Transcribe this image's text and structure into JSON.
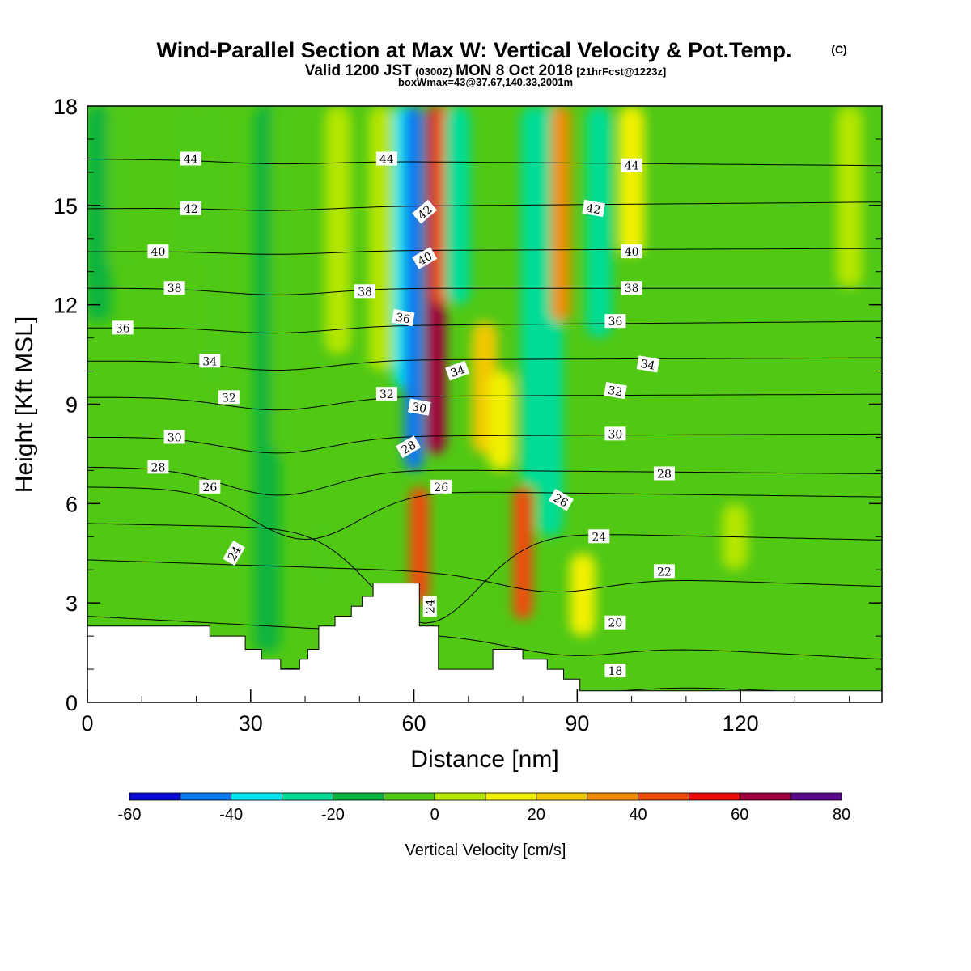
{
  "title": {
    "main": "Wind-Parallel Section at Max W: Vertical Velocity & Pot.Temp.",
    "copyright": "(C)",
    "valid_prefix": "Valid 1200 JST",
    "valid_utc": "(0300Z)",
    "valid_date": "MON 8 Oct 2018",
    "forecast": "[21hrFcst@1223z]",
    "boxwmax": "boxWmax=43@37.67,140.33,2001m"
  },
  "chart_data": {
    "type": "heatmap",
    "xlabel": "Distance [nm]",
    "ylabel": "Height [Kft MSL]",
    "xlim": [
      0,
      146
    ],
    "ylim": [
      0,
      18
    ],
    "x_ticks": [
      0,
      30,
      60,
      90,
      120
    ],
    "y_ticks": [
      0,
      3,
      6,
      9,
      12,
      15,
      18
    ],
    "colorbar": {
      "label": "Vertical Velocity [cm/s]",
      "levels": [
        -60,
        -50,
        -40,
        -30,
        -20,
        -10,
        0,
        10,
        20,
        30,
        40,
        50,
        60,
        70,
        80
      ],
      "tick_labels": [
        "-60",
        "-40",
        "-20",
        "0",
        "20",
        "40",
        "60",
        "80"
      ],
      "colors": [
        "#0a0ad6",
        "#0a78f0",
        "#00e6f0",
        "#00dc96",
        "#0ab43c",
        "#50c814",
        "#b4e600",
        "#f0f000",
        "#f0c800",
        "#f08c00",
        "#f04b0a",
        "#f00a0a",
        "#a0003c",
        "#5a0a8c"
      ]
    },
    "w_features": [
      {
        "x": 2,
        "y1": 11.5,
        "y2": 18,
        "w": -12
      },
      {
        "x": 6,
        "y1": 13.0,
        "y2": 18,
        "w": -8
      },
      {
        "x": 18,
        "y1": 13.5,
        "y2": 18,
        "w": -6
      },
      {
        "x": 23,
        "y1": 9.5,
        "y2": 18,
        "w": -4
      },
      {
        "x": 33,
        "y1": 1.5,
        "y2": 18,
        "w": -15
      },
      {
        "x": 36,
        "y1": 7.5,
        "y2": 18,
        "w": -6
      },
      {
        "x": 43,
        "y1": 3.5,
        "y2": 5.5,
        "w": -8
      },
      {
        "x": 46,
        "y1": 10.5,
        "y2": 18,
        "w": 6
      },
      {
        "x": 54,
        "y1": 10.0,
        "y2": 18,
        "w": 8
      },
      {
        "x": 58,
        "y1": 9.5,
        "y2": 18,
        "w": -32
      },
      {
        "x": 60,
        "y1": 7.0,
        "y2": 18,
        "w": -42
      },
      {
        "x": 61,
        "y1": 3.0,
        "y2": 6.5,
        "w": 45
      },
      {
        "x": 64,
        "y1": 7.5,
        "y2": 18,
        "w": 65
      },
      {
        "x": 65,
        "y1": 12.0,
        "y2": 18,
        "w": 42
      },
      {
        "x": 68,
        "y1": 12.0,
        "y2": 18,
        "w": -30
      },
      {
        "x": 73,
        "y1": 7.5,
        "y2": 11.5,
        "w": 24
      },
      {
        "x": 76,
        "y1": 7.0,
        "y2": 10.0,
        "w": 18
      },
      {
        "x": 80,
        "y1": 2.5,
        "y2": 6.5,
        "w": 45
      },
      {
        "x": 82,
        "y1": 6.5,
        "y2": 18,
        "w": -28
      },
      {
        "x": 85,
        "y1": 5.0,
        "y2": 18,
        "w": -22
      },
      {
        "x": 87,
        "y1": 11.5,
        "y2": 18,
        "w": 38
      },
      {
        "x": 91,
        "y1": 2.0,
        "y2": 4.5,
        "w": 16
      },
      {
        "x": 94,
        "y1": 11.0,
        "y2": 18,
        "w": -24
      },
      {
        "x": 100,
        "y1": 13.5,
        "y2": 18,
        "w": 14
      },
      {
        "x": 119,
        "y1": 4.0,
        "y2": 6.0,
        "w": 6
      },
      {
        "x": 140,
        "y1": 12.5,
        "y2": 18,
        "w": 6
      }
    ],
    "theta_lines": [
      {
        "label": "18",
        "left": 1.3,
        "right": 0.2,
        "dip_x": 90,
        "dip": 0.3,
        "label_x": 97,
        "label_y": 0.95
      },
      {
        "label": "20",
        "left": 2.6,
        "right": 1.3,
        "dip_x": 88,
        "dip": 0.4,
        "label_x": 97,
        "label_y": 2.4
      },
      {
        "label": "22",
        "left": 4.3,
        "right": 3.5,
        "dip_x": 85,
        "dip": 0.5,
        "label_x": 106,
        "label_y": 3.95
      },
      {
        "label": "24",
        "left": 5.4,
        "right": 4.9,
        "dip_x": 62,
        "dip": 2.8,
        "label_x": 94,
        "label_y": 5.0
      },
      {
        "label": "26",
        "left": 6.5,
        "right": 6.2,
        "dip_x": 40,
        "dip": 1.5,
        "label_x": 22.5,
        "label_y": 6.5
      },
      {
        "label": "28",
        "left": 7.1,
        "right": 6.9,
        "dip_x": 35,
        "dip": 0.8,
        "label_x": 13,
        "label_y": 7.1
      },
      {
        "label": "30",
        "left": 8.0,
        "right": 8.1,
        "dip_x": 35,
        "dip": 0.5,
        "label_x": 16,
        "label_y": 8.0
      },
      {
        "label": "32",
        "left": 9.2,
        "right": 9.3,
        "dip_x": 35,
        "dip": 0.4,
        "label_x": 26,
        "label_y": 9.2
      },
      {
        "label": "34",
        "left": 10.3,
        "right": 10.4,
        "dip_x": 35,
        "dip": 0.3,
        "label_x": 22.5,
        "label_y": 10.3
      },
      {
        "label": "36",
        "left": 11.3,
        "right": 11.5,
        "dip_x": 35,
        "dip": 0.2,
        "label_x": 6.5,
        "label_y": 11.3
      },
      {
        "label": "38",
        "left": 12.5,
        "right": 12.5,
        "dip_x": 35,
        "dip": 0.2,
        "label_x": 16,
        "label_y": 12.5
      },
      {
        "label": "40",
        "left": 13.6,
        "right": 13.7,
        "dip_x": 35,
        "dip": 0.1,
        "label_x": 13,
        "label_y": 13.6
      },
      {
        "label": "42",
        "left": 14.9,
        "right": 15.1,
        "dip_x": 35,
        "dip": 0.1,
        "label_x": 19,
        "label_y": 14.9
      },
      {
        "label": "44",
        "left": 16.4,
        "right": 16.2,
        "dip_x": 35,
        "dip": 0.1,
        "label_x": 19,
        "label_y": 16.4
      }
    ],
    "extra_contour_labels": [
      {
        "label": "44",
        "x": 55,
        "y": 16.4,
        "rot": 0
      },
      {
        "label": "44",
        "x": 100,
        "y": 16.2,
        "rot": 0
      },
      {
        "label": "42",
        "x": 62,
        "y": 14.8,
        "rot": -40
      },
      {
        "label": "42",
        "x": 93,
        "y": 14.9,
        "rot": 10
      },
      {
        "label": "40",
        "x": 62,
        "y": 13.4,
        "rot": -30
      },
      {
        "label": "40",
        "x": 100,
        "y": 13.6,
        "rot": 0
      },
      {
        "label": "38",
        "x": 51,
        "y": 12.4,
        "rot": 0
      },
      {
        "label": "38",
        "x": 100,
        "y": 12.5,
        "rot": 0
      },
      {
        "label": "36",
        "x": 58,
        "y": 11.6,
        "rot": 10
      },
      {
        "label": "36",
        "x": 97,
        "y": 11.5,
        "rot": 0
      },
      {
        "label": "34",
        "x": 68,
        "y": 10.0,
        "rot": -20
      },
      {
        "label": "34",
        "x": 103,
        "y": 10.2,
        "rot": 10
      },
      {
        "label": "32",
        "x": 55,
        "y": 9.3,
        "rot": 0
      },
      {
        "label": "32",
        "x": 97,
        "y": 9.4,
        "rot": 10
      },
      {
        "label": "30",
        "x": 61,
        "y": 8.9,
        "rot": 10
      },
      {
        "label": "30",
        "x": 97,
        "y": 8.1,
        "rot": 0
      },
      {
        "label": "28",
        "x": 59,
        "y": 7.7,
        "rot": -30
      },
      {
        "label": "28",
        "x": 106,
        "y": 6.9,
        "rot": 0
      },
      {
        "label": "26",
        "x": 65,
        "y": 6.5,
        "rot": 0
      },
      {
        "label": "26",
        "x": 87,
        "y": 6.1,
        "rot": 30
      },
      {
        "label": "24",
        "x": 27,
        "y": 4.5,
        "rot": -60
      },
      {
        "label": "24",
        "x": 63,
        "y": 2.9,
        "rot": -90
      }
    ],
    "terrain": [
      [
        0,
        2.3
      ],
      [
        22.5,
        2.3
      ],
      [
        22.5,
        2.0
      ],
      [
        29,
        2.0
      ],
      [
        29,
        1.6
      ],
      [
        32,
        1.6
      ],
      [
        32,
        1.3
      ],
      [
        35.5,
        1.3
      ],
      [
        35.5,
        1.0
      ],
      [
        39,
        1.0
      ],
      [
        39,
        1.3
      ],
      [
        40.5,
        1.3
      ],
      [
        40.5,
        1.6
      ],
      [
        42.5,
        1.6
      ],
      [
        42.5,
        2.3
      ],
      [
        45.5,
        2.3
      ],
      [
        45.5,
        2.6
      ],
      [
        48.5,
        2.6
      ],
      [
        48.5,
        2.9
      ],
      [
        50.5,
        2.9
      ],
      [
        50.5,
        3.2
      ],
      [
        52.5,
        3.2
      ],
      [
        52.5,
        3.6
      ],
      [
        61,
        3.6
      ],
      [
        61,
        2.3
      ],
      [
        64.5,
        2.3
      ],
      [
        64.5,
        1.0
      ],
      [
        74.5,
        1.0
      ],
      [
        74.5,
        1.6
      ],
      [
        80,
        1.6
      ],
      [
        80,
        1.3
      ],
      [
        84.5,
        1.3
      ],
      [
        84.5,
        1.0
      ],
      [
        87.5,
        1.0
      ],
      [
        87.5,
        0.7
      ],
      [
        90.5,
        0.7
      ],
      [
        90.5,
        0.35
      ],
      [
        146,
        0.35
      ]
    ]
  }
}
